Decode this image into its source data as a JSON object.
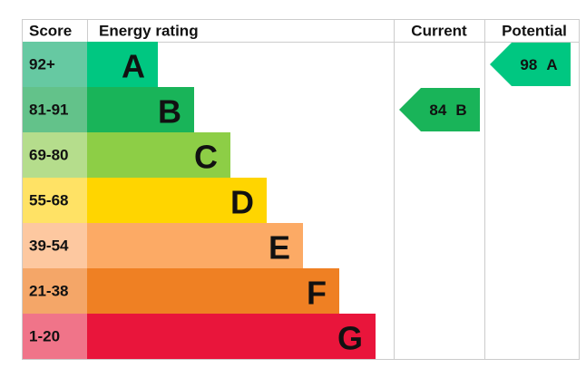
{
  "header": {
    "score": "Score",
    "energy_rating": "Energy rating",
    "current": "Current",
    "potential": "Potential"
  },
  "bands": [
    {
      "score": "92+",
      "letter": "A",
      "color": "#00c781",
      "score_color": "#66c9a2"
    },
    {
      "score": "81-91",
      "letter": "B",
      "color": "#19b459",
      "score_color": "#63c28a"
    },
    {
      "score": "69-80",
      "letter": "C",
      "color": "#8dce46",
      "score_color": "#b5dd8c"
    },
    {
      "score": "55-68",
      "letter": "D",
      "color": "#ffd500",
      "score_color": "#ffe265"
    },
    {
      "score": "39-54",
      "letter": "E",
      "color": "#fcaa65",
      "score_color": "#fdc8a0"
    },
    {
      "score": "21-38",
      "letter": "F",
      "color": "#ef8023",
      "score_color": "#f4a668"
    },
    {
      "score": "1-20",
      "letter": "G",
      "color": "#e9153b",
      "score_color": "#f07489"
    }
  ],
  "current": {
    "value": 84,
    "letter": "B"
  },
  "potential": {
    "value": 98,
    "letter": "A"
  }
}
